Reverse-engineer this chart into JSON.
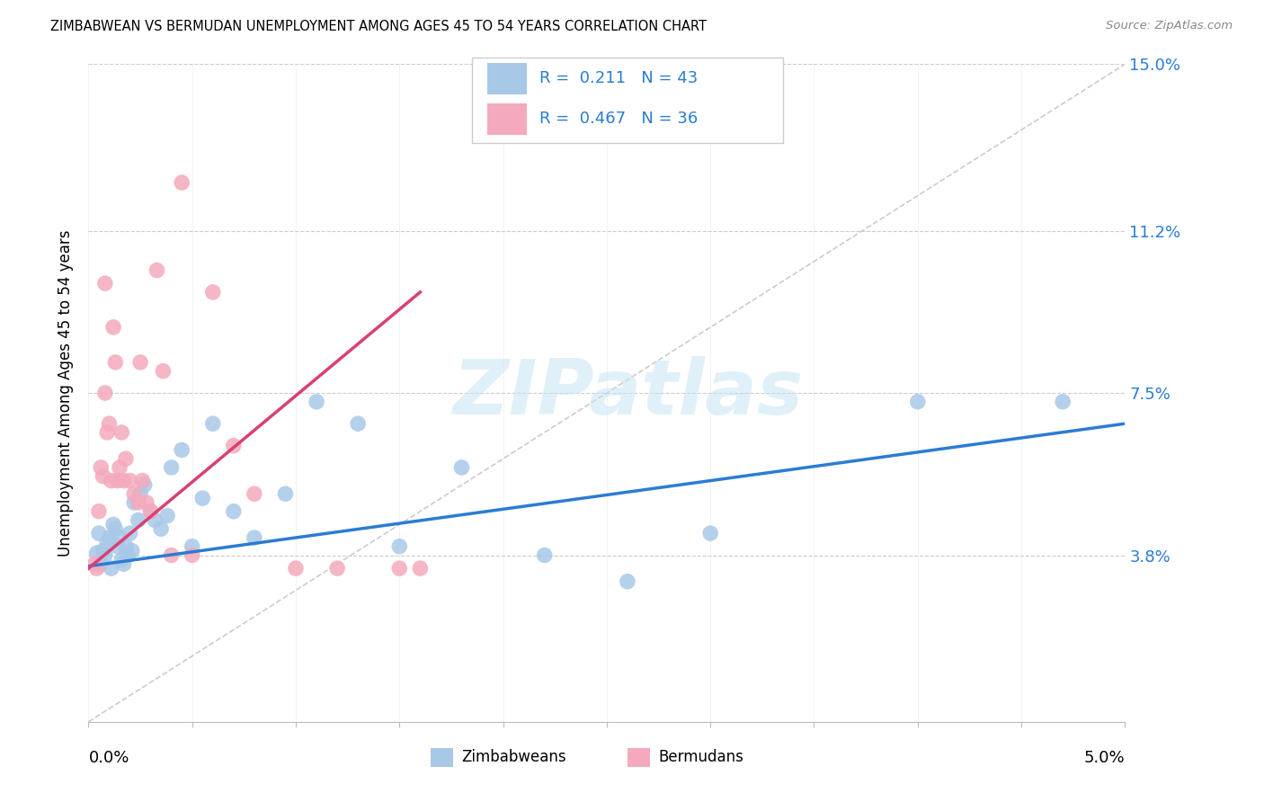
{
  "title": "ZIMBABWEAN VS BERMUDAN UNEMPLOYMENT AMONG AGES 45 TO 54 YEARS CORRELATION CHART",
  "source": "Source: ZipAtlas.com",
  "ylabel": "Unemployment Among Ages 45 to 54 years",
  "xlim": [
    0.0,
    5.0
  ],
  "ylim": [
    0.0,
    15.0
  ],
  "yticks": [
    3.8,
    7.5,
    11.2,
    15.0
  ],
  "ytick_labels": [
    "3.8%",
    "7.5%",
    "11.2%",
    "15.0%"
  ],
  "xtick_positions": [
    0.0,
    0.5,
    1.0,
    1.5,
    2.0,
    2.5,
    3.0,
    3.5,
    4.0,
    4.5,
    5.0
  ],
  "blue_dot_color": "#A8C8E8",
  "pink_dot_color": "#F4AABC",
  "blue_line_color": "#2B7CD3",
  "pink_line_color": "#D94070",
  "diagonal_color": "#CCCCCC",
  "text_color": "#2B7CD3",
  "R_blue": 0.211,
  "N_blue": 43,
  "R_pink": 0.467,
  "N_pink": 36,
  "blue_scatter_x": [
    0.04,
    0.05,
    0.06,
    0.07,
    0.08,
    0.09,
    0.1,
    0.11,
    0.12,
    0.13,
    0.14,
    0.15,
    0.16,
    0.17,
    0.18,
    0.19,
    0.2,
    0.21,
    0.22,
    0.24,
    0.25,
    0.27,
    0.3,
    0.32,
    0.35,
    0.38,
    0.4,
    0.45,
    0.5,
    0.55,
    0.6,
    0.7,
    0.8,
    0.95,
    1.1,
    1.3,
    1.5,
    1.8,
    2.2,
    2.6,
    3.0,
    4.0,
    4.7
  ],
  "blue_scatter_y": [
    3.85,
    4.3,
    3.6,
    3.9,
    3.8,
    4.1,
    4.2,
    3.5,
    4.5,
    4.4,
    4.0,
    4.2,
    3.7,
    3.6,
    4.0,
    3.8,
    4.3,
    3.9,
    5.0,
    4.6,
    5.2,
    5.4,
    4.8,
    4.6,
    4.4,
    4.7,
    5.8,
    6.2,
    4.0,
    5.1,
    6.8,
    4.8,
    4.2,
    5.2,
    7.3,
    6.8,
    4.0,
    5.8,
    3.8,
    3.2,
    4.3,
    7.3,
    7.3
  ],
  "pink_scatter_x": [
    0.03,
    0.04,
    0.05,
    0.06,
    0.07,
    0.08,
    0.09,
    0.1,
    0.11,
    0.12,
    0.13,
    0.14,
    0.15,
    0.16,
    0.17,
    0.18,
    0.2,
    0.22,
    0.24,
    0.26,
    0.28,
    0.3,
    0.33,
    0.36,
    0.4,
    0.45,
    0.5,
    0.6,
    0.7,
    0.8,
    1.0,
    1.2,
    1.5,
    1.6,
    0.08,
    0.25
  ],
  "pink_scatter_y": [
    3.6,
    3.5,
    4.8,
    5.8,
    5.6,
    7.5,
    6.6,
    6.8,
    5.5,
    9.0,
    8.2,
    5.5,
    5.8,
    6.6,
    5.5,
    6.0,
    5.5,
    5.2,
    5.0,
    5.5,
    5.0,
    4.8,
    10.3,
    8.0,
    3.8,
    12.3,
    3.8,
    9.8,
    6.3,
    5.2,
    3.5,
    3.5,
    3.5,
    3.5,
    10.0,
    8.2
  ],
  "background_color": "#FFFFFF",
  "watermark_text": "ZIPatlas",
  "legend_label_blue": "Zimbabweans",
  "legend_label_pink": "Bermudans",
  "blue_trend_x": [
    0.0,
    5.0
  ],
  "blue_trend_y": [
    3.55,
    6.8
  ],
  "pink_trend_x": [
    0.0,
    1.6
  ],
  "pink_trend_y": [
    3.5,
    9.8
  ]
}
